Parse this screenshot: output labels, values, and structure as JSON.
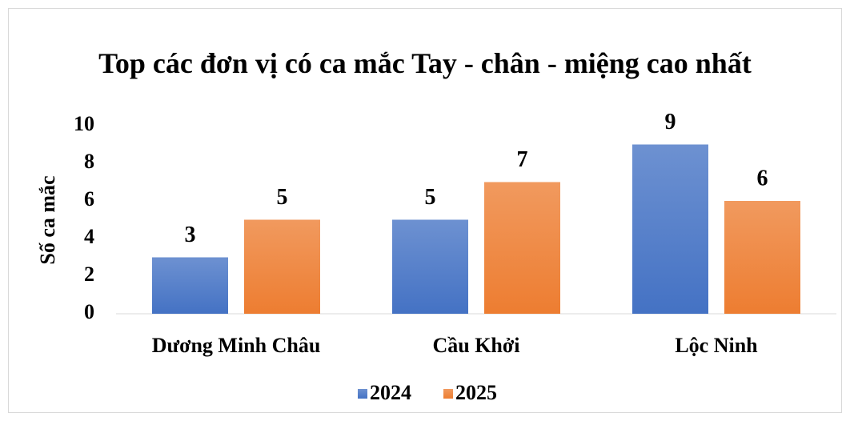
{
  "chart_data": {
    "type": "bar",
    "title": "Top các đơn vị có ca mắc Tay - chân - miệng cao nhất",
    "y_label": "Số ca mắc",
    "categories": [
      "Dương Minh Châu",
      "Cầu Khởi",
      "Lộc Ninh"
    ],
    "series": [
      {
        "name": "2024",
        "color": "#4472c4",
        "values": [
          3,
          5,
          9
        ]
      },
      {
        "name": "2025",
        "color": "#ed7d31",
        "values": [
          5,
          7,
          6
        ]
      }
    ],
    "ylim": [
      0,
      10
    ],
    "yticks": [
      0,
      2,
      4,
      6,
      8,
      10
    ],
    "grid": false,
    "legend": "bottom"
  }
}
